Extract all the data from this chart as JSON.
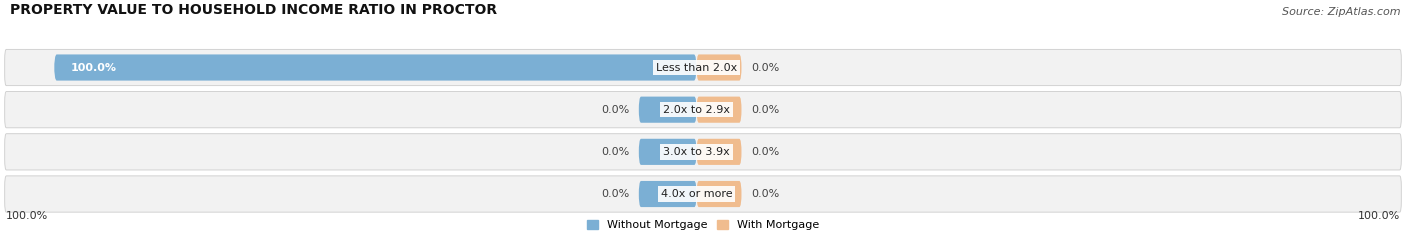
{
  "title": "PROPERTY VALUE TO HOUSEHOLD INCOME RATIO IN PROCTOR",
  "source": "Source: ZipAtlas.com",
  "categories": [
    "Less than 2.0x",
    "2.0x to 2.9x",
    "3.0x to 3.9x",
    "4.0x or more"
  ],
  "without_mortgage": [
    100.0,
    0.0,
    0.0,
    0.0
  ],
  "with_mortgage": [
    0.0,
    0.0,
    0.0,
    0.0
  ],
  "color_without": "#7bafd4",
  "color_with": "#f0bc8e",
  "title_fontsize": 10,
  "source_fontsize": 8,
  "label_fontsize": 8,
  "axis_label_left": "100.0%",
  "axis_label_right": "100.0%",
  "legend_without": "Without Mortgage",
  "legend_with": "With Mortgage"
}
